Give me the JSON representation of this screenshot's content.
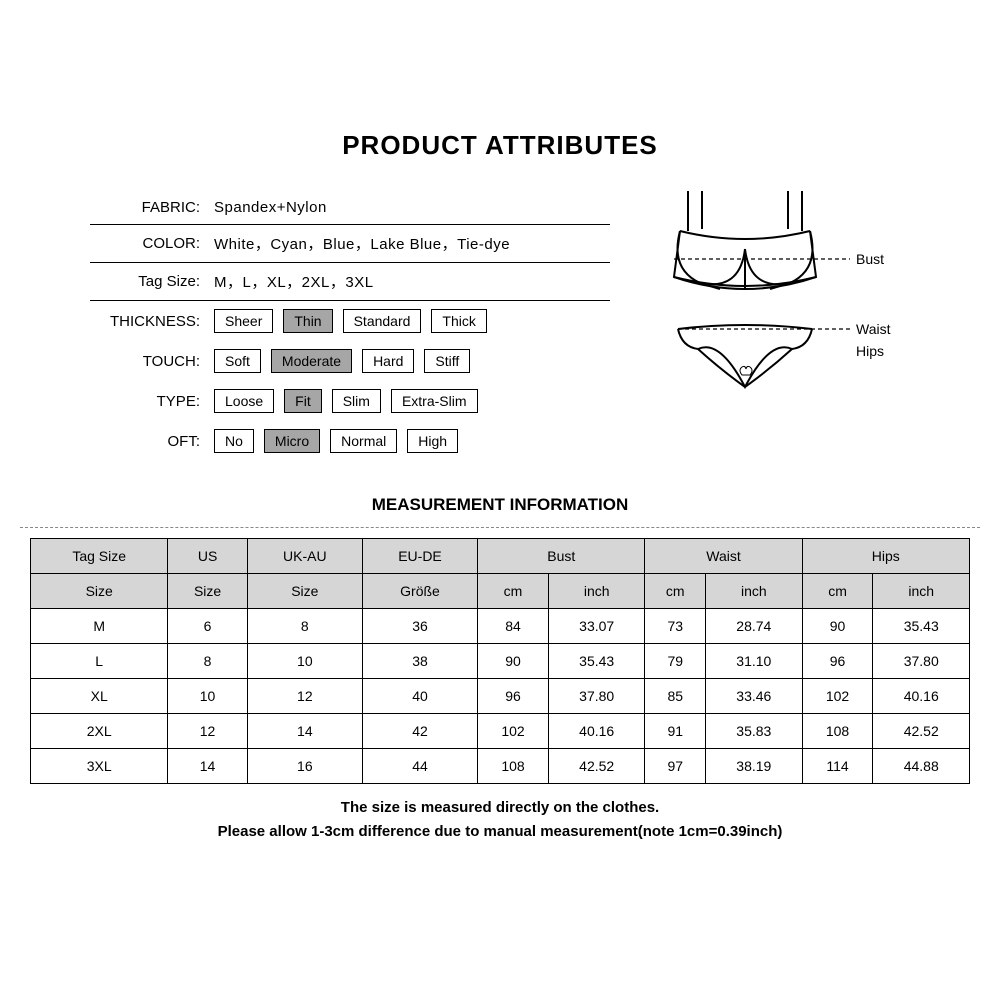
{
  "title": "PRODUCT ATTRIBUTES",
  "attributes": {
    "fabric": {
      "label": "FABRIC:",
      "value": "Spandex+Nylon"
    },
    "color": {
      "label": "COLOR:",
      "value": "White，Cyan，Blue，Lake Blue，Tie-dye"
    },
    "tag_size": {
      "label": "Tag Size:",
      "value": "M，L，XL，2XL，3XL"
    },
    "thickness": {
      "label": "THICKNESS:",
      "options": [
        "Sheer",
        "Thin",
        "Standard",
        "Thick"
      ],
      "selected": "Thin"
    },
    "touch": {
      "label": "TOUCH:",
      "options": [
        "Soft",
        "Moderate",
        "Hard",
        "Stiff"
      ],
      "selected": "Moderate"
    },
    "type": {
      "label": "TYPE:",
      "options": [
        "Loose",
        "Fit",
        "Slim",
        "Extra-Slim"
      ],
      "selected": "Fit"
    },
    "oft": {
      "label": "OFT:",
      "options": [
        "No",
        "Micro",
        "Normal",
        "High"
      ],
      "selected": "Micro"
    }
  },
  "diagram_labels": {
    "bust": "Bust",
    "waist": "Waist",
    "hips": "Hips"
  },
  "measurement_title": "MEASUREMENT INFORMATION",
  "table": {
    "header_row1": [
      "Tag Size",
      "US",
      "UK-AU",
      "EU-DE",
      "Bust",
      "Waist",
      "Hips"
    ],
    "header_row2": [
      "Size",
      "Size",
      "Size",
      "Größe",
      "cm",
      "inch",
      "cm",
      "inch",
      "cm",
      "inch"
    ],
    "rows": [
      [
        "M",
        "6",
        "8",
        "36",
        "84",
        "33.07",
        "73",
        "28.74",
        "90",
        "35.43"
      ],
      [
        "L",
        "8",
        "10",
        "38",
        "90",
        "35.43",
        "79",
        "31.10",
        "96",
        "37.80"
      ],
      [
        "XL",
        "10",
        "12",
        "40",
        "96",
        "37.80",
        "85",
        "33.46",
        "102",
        "40.16"
      ],
      [
        "2XL",
        "12",
        "14",
        "42",
        "102",
        "40.16",
        "91",
        "35.83",
        "108",
        "42.52"
      ],
      [
        "3XL",
        "14",
        "16",
        "44",
        "108",
        "42.52",
        "97",
        "38.19",
        "114",
        "44.88"
      ]
    ]
  },
  "footnotes": [
    "The size is measured directly on the clothes.",
    "Please allow 1-3cm difference due to manual measurement(note 1cm=0.39inch)"
  ],
  "colors": {
    "selected_bg": "#a6a6a6",
    "header_bg": "#d6d6d6",
    "border": "#000000",
    "dash": "#888888"
  }
}
